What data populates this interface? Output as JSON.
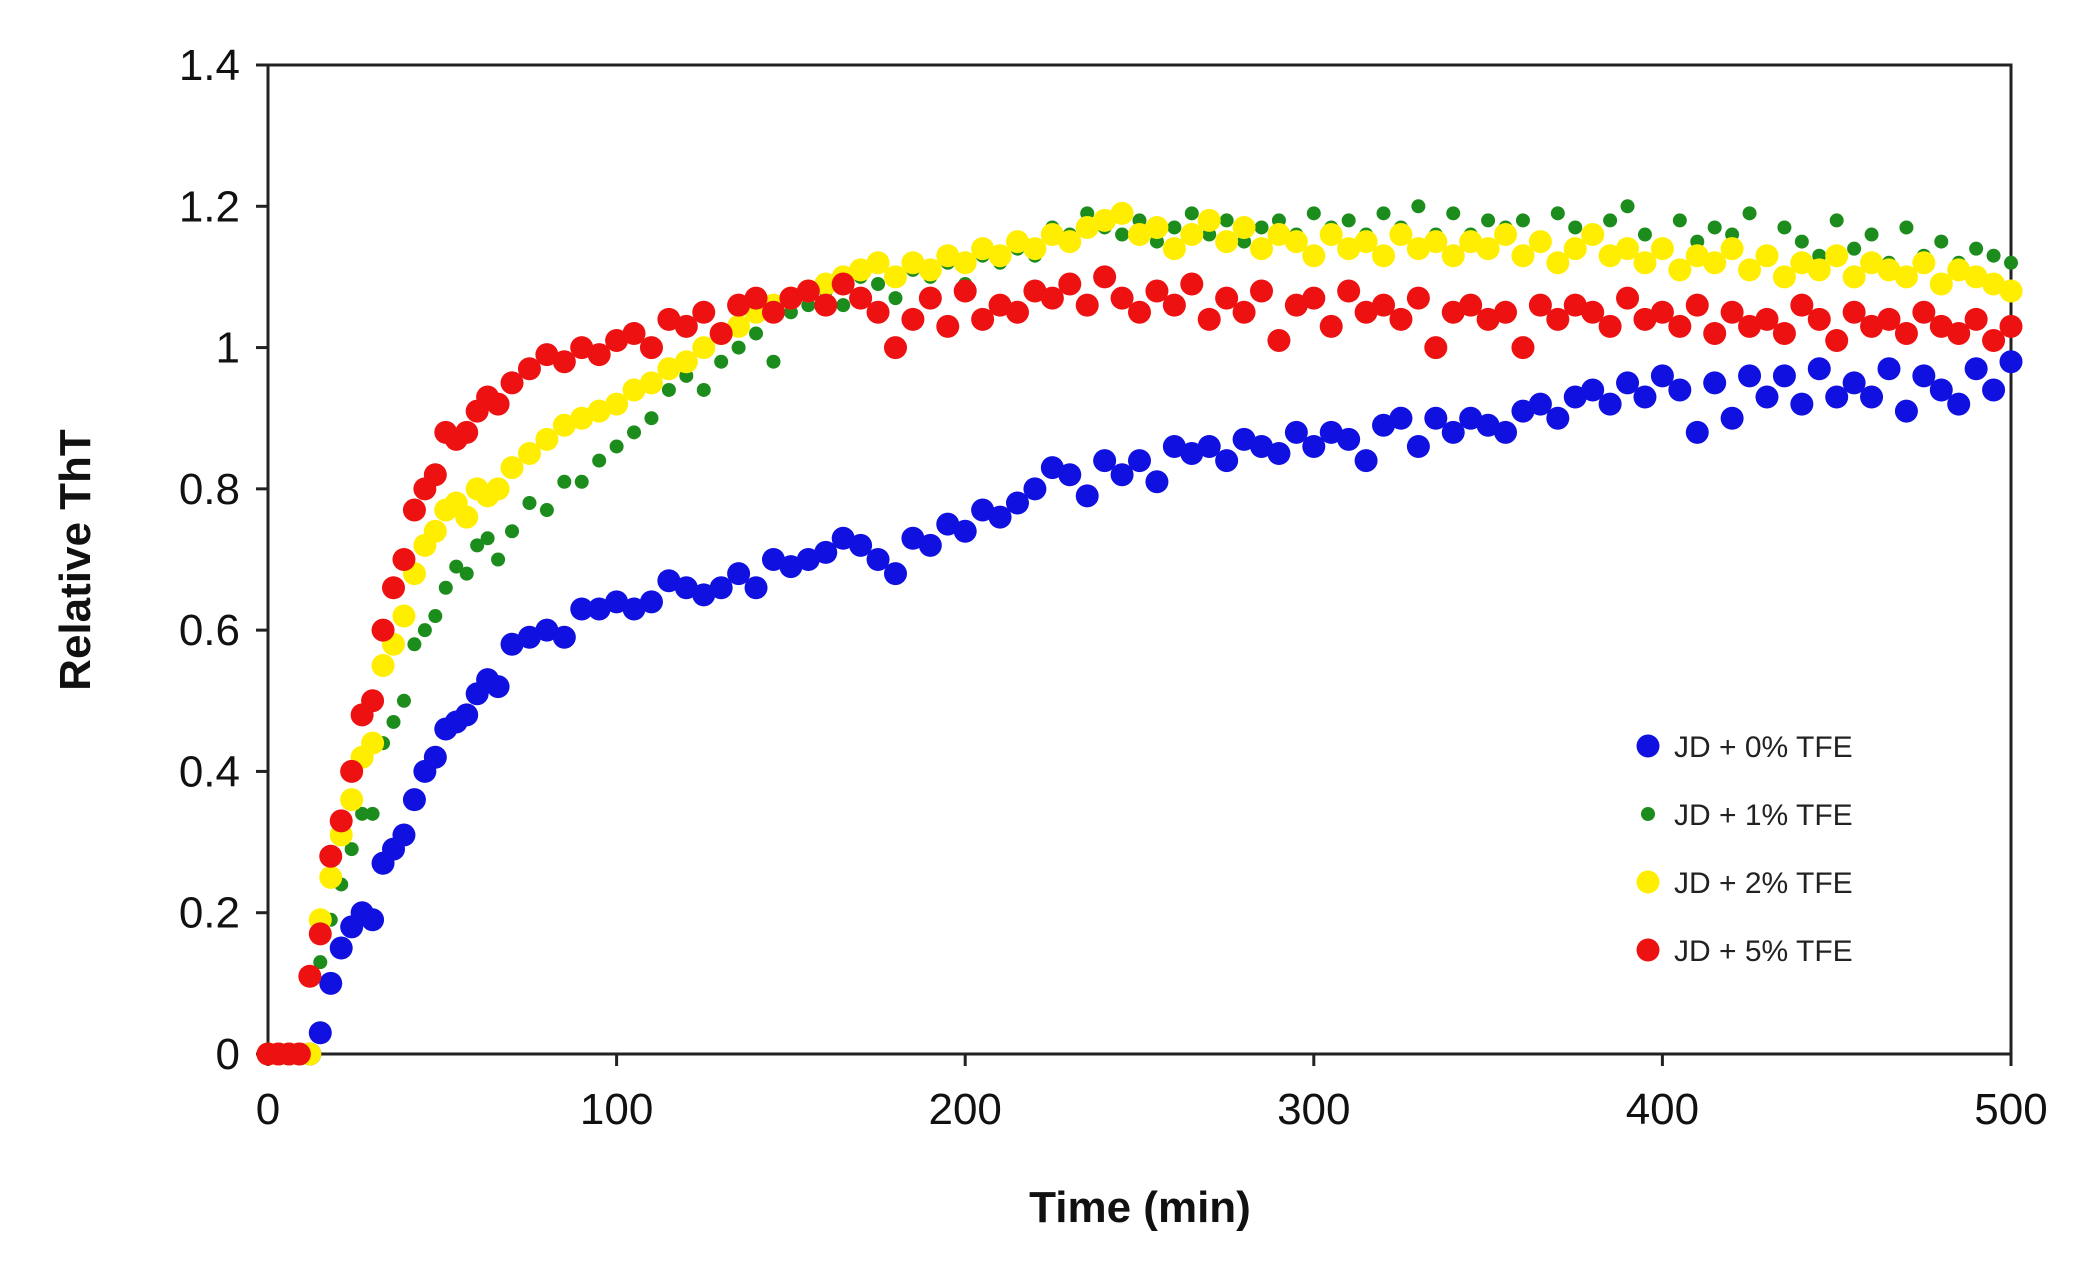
{
  "chart_data": {
    "type": "scatter",
    "title": "",
    "xlabel": "Time (min)",
    "ylabel": "Relative ThT",
    "xlim": [
      0,
      500
    ],
    "ylim": [
      0,
      1.4
    ],
    "xticks": [
      0,
      100,
      200,
      300,
      400,
      500
    ],
    "xtick_labels": [
      "0",
      "100",
      "200",
      "300",
      "400",
      "500"
    ],
    "yticks": [
      0,
      0.2,
      0.4,
      0.6,
      0.8,
      1.0,
      1.2,
      1.4
    ],
    "ytick_labels": [
      "0",
      "0.2",
      "0.4",
      "0.6",
      "0.8",
      "1",
      "1.2",
      "1.4"
    ],
    "grid": false,
    "legend_position": "lower-right",
    "series": [
      {
        "name": "JD + 0% TFE",
        "color": "#1010e0",
        "marker": "large",
        "x": [
          0,
          3,
          6,
          9,
          12,
          15,
          18,
          21,
          24,
          27,
          30,
          33,
          36,
          39,
          42,
          45,
          48,
          51,
          54,
          57,
          60,
          63,
          66,
          70,
          75,
          80,
          85,
          90,
          95,
          100,
          105,
          110,
          115,
          120,
          125,
          130,
          135,
          140,
          145,
          150,
          155,
          160,
          165,
          170,
          175,
          180,
          185,
          190,
          195,
          200,
          205,
          210,
          215,
          220,
          225,
          230,
          235,
          240,
          245,
          250,
          255,
          260,
          265,
          270,
          275,
          280,
          285,
          290,
          295,
          300,
          305,
          310,
          315,
          320,
          325,
          330,
          335,
          340,
          345,
          350,
          355,
          360,
          365,
          370,
          375,
          380,
          385,
          390,
          395,
          400,
          405,
          410,
          415,
          420,
          425,
          430,
          435,
          440,
          445,
          450,
          455,
          460,
          465,
          470,
          475,
          480,
          485,
          490,
          495,
          500
        ],
        "y": [
          0,
          0,
          0,
          0,
          0,
          0.03,
          0.1,
          0.15,
          0.18,
          0.2,
          0.19,
          0.27,
          0.29,
          0.31,
          0.36,
          0.4,
          0.42,
          0.46,
          0.47,
          0.48,
          0.51,
          0.53,
          0.52,
          0.58,
          0.59,
          0.6,
          0.59,
          0.63,
          0.63,
          0.64,
          0.63,
          0.64,
          0.67,
          0.66,
          0.65,
          0.66,
          0.68,
          0.66,
          0.7,
          0.69,
          0.7,
          0.71,
          0.73,
          0.72,
          0.7,
          0.68,
          0.73,
          0.72,
          0.75,
          0.74,
          0.77,
          0.76,
          0.78,
          0.8,
          0.83,
          0.82,
          0.79,
          0.84,
          0.82,
          0.84,
          0.81,
          0.86,
          0.85,
          0.86,
          0.84,
          0.87,
          0.86,
          0.85,
          0.88,
          0.86,
          0.88,
          0.87,
          0.84,
          0.89,
          0.9,
          0.86,
          0.9,
          0.88,
          0.9,
          0.89,
          0.88,
          0.91,
          0.92,
          0.9,
          0.93,
          0.94,
          0.92,
          0.95,
          0.93,
          0.96,
          0.94,
          0.88,
          0.95,
          0.9,
          0.96,
          0.93,
          0.96,
          0.92,
          0.97,
          0.93,
          0.95,
          0.93,
          0.97,
          0.91,
          0.96,
          0.94,
          0.92,
          0.97,
          0.94,
          0.98
        ]
      },
      {
        "name": "JD + 1% TFE",
        "color": "#1c8c1c",
        "marker": "small",
        "x": [
          0,
          3,
          6,
          9,
          12,
          15,
          18,
          21,
          24,
          27,
          30,
          33,
          36,
          39,
          42,
          45,
          48,
          51,
          54,
          57,
          60,
          63,
          66,
          70,
          75,
          80,
          85,
          90,
          95,
          100,
          105,
          110,
          115,
          120,
          125,
          130,
          135,
          140,
          145,
          150,
          155,
          160,
          165,
          170,
          175,
          180,
          185,
          190,
          195,
          200,
          205,
          210,
          215,
          220,
          225,
          230,
          235,
          240,
          245,
          250,
          255,
          260,
          265,
          270,
          275,
          280,
          285,
          290,
          295,
          300,
          305,
          310,
          315,
          320,
          325,
          330,
          335,
          340,
          345,
          350,
          355,
          360,
          365,
          370,
          375,
          380,
          385,
          390,
          395,
          400,
          405,
          410,
          415,
          420,
          425,
          430,
          435,
          440,
          445,
          450,
          455,
          460,
          465,
          470,
          475,
          480,
          485,
          490,
          495,
          500
        ],
        "y": [
          0,
          0,
          0,
          0,
          0,
          0.13,
          0.19,
          0.24,
          0.29,
          0.34,
          0.34,
          0.44,
          0.47,
          0.5,
          0.58,
          0.6,
          0.62,
          0.66,
          0.69,
          0.68,
          0.72,
          0.73,
          0.7,
          0.74,
          0.78,
          0.77,
          0.81,
          0.81,
          0.84,
          0.86,
          0.88,
          0.9,
          0.94,
          0.96,
          0.94,
          0.98,
          1.0,
          1.02,
          0.98,
          1.05,
          1.06,
          1.08,
          1.06,
          1.1,
          1.09,
          1.07,
          1.11,
          1.1,
          1.12,
          1.09,
          1.13,
          1.12,
          1.14,
          1.13,
          1.17,
          1.16,
          1.19,
          1.17,
          1.16,
          1.18,
          1.15,
          1.17,
          1.19,
          1.16,
          1.18,
          1.15,
          1.17,
          1.18,
          1.16,
          1.19,
          1.17,
          1.18,
          1.16,
          1.19,
          1.17,
          1.2,
          1.16,
          1.19,
          1.16,
          1.18,
          1.17,
          1.18,
          1.15,
          1.19,
          1.17,
          1.16,
          1.18,
          1.2,
          1.16,
          1.14,
          1.18,
          1.15,
          1.17,
          1.16,
          1.19,
          1.13,
          1.17,
          1.15,
          1.13,
          1.18,
          1.14,
          1.16,
          1.12,
          1.17,
          1.13,
          1.15,
          1.12,
          1.14,
          1.13,
          1.12
        ]
      },
      {
        "name": "JD + 2% TFE",
        "color": "#ffee00",
        "marker": "large",
        "x": [
          0,
          3,
          6,
          9,
          12,
          15,
          18,
          21,
          24,
          27,
          30,
          33,
          36,
          39,
          42,
          45,
          48,
          51,
          54,
          57,
          60,
          63,
          66,
          70,
          75,
          80,
          85,
          90,
          95,
          100,
          105,
          110,
          115,
          120,
          125,
          130,
          135,
          140,
          145,
          150,
          155,
          160,
          165,
          170,
          175,
          180,
          185,
          190,
          195,
          200,
          205,
          210,
          215,
          220,
          225,
          230,
          235,
          240,
          245,
          250,
          255,
          260,
          265,
          270,
          275,
          280,
          285,
          290,
          295,
          300,
          305,
          310,
          315,
          320,
          325,
          330,
          335,
          340,
          345,
          350,
          355,
          360,
          365,
          370,
          375,
          380,
          385,
          390,
          395,
          400,
          405,
          410,
          415,
          420,
          425,
          430,
          435,
          440,
          445,
          450,
          455,
          460,
          465,
          470,
          475,
          480,
          485,
          490,
          495,
          500
        ],
        "y": [
          0,
          0,
          0,
          0,
          0,
          0.19,
          0.25,
          0.31,
          0.36,
          0.42,
          0.44,
          0.55,
          0.58,
          0.62,
          0.68,
          0.72,
          0.74,
          0.77,
          0.78,
          0.76,
          0.8,
          0.79,
          0.8,
          0.83,
          0.85,
          0.87,
          0.89,
          0.9,
          0.91,
          0.92,
          0.94,
          0.95,
          0.97,
          0.98,
          1.0,
          1.02,
          1.03,
          1.05,
          1.06,
          1.07,
          1.08,
          1.09,
          1.1,
          1.11,
          1.12,
          1.1,
          1.12,
          1.11,
          1.13,
          1.12,
          1.14,
          1.13,
          1.15,
          1.14,
          1.16,
          1.15,
          1.17,
          1.18,
          1.19,
          1.16,
          1.17,
          1.14,
          1.16,
          1.18,
          1.15,
          1.17,
          1.14,
          1.16,
          1.15,
          1.13,
          1.16,
          1.14,
          1.15,
          1.13,
          1.16,
          1.14,
          1.15,
          1.13,
          1.15,
          1.14,
          1.16,
          1.13,
          1.15,
          1.12,
          1.14,
          1.16,
          1.13,
          1.14,
          1.12,
          1.14,
          1.11,
          1.13,
          1.12,
          1.14,
          1.11,
          1.13,
          1.1,
          1.12,
          1.11,
          1.13,
          1.1,
          1.12,
          1.11,
          1.1,
          1.12,
          1.09,
          1.11,
          1.1,
          1.09,
          1.08
        ]
      },
      {
        "name": "JD + 5% TFE",
        "color": "#ee1111",
        "marker": "large",
        "x": [
          0,
          3,
          6,
          9,
          12,
          15,
          18,
          21,
          24,
          27,
          30,
          33,
          36,
          39,
          42,
          45,
          48,
          51,
          54,
          57,
          60,
          63,
          66,
          70,
          75,
          80,
          85,
          90,
          95,
          100,
          105,
          110,
          115,
          120,
          125,
          130,
          135,
          140,
          145,
          150,
          155,
          160,
          165,
          170,
          175,
          180,
          185,
          190,
          195,
          200,
          205,
          210,
          215,
          220,
          225,
          230,
          235,
          240,
          245,
          250,
          255,
          260,
          265,
          270,
          275,
          280,
          285,
          290,
          295,
          300,
          305,
          310,
          315,
          320,
          325,
          330,
          335,
          340,
          345,
          350,
          355,
          360,
          365,
          370,
          375,
          380,
          385,
          390,
          395,
          400,
          405,
          410,
          415,
          420,
          425,
          430,
          435,
          440,
          445,
          450,
          455,
          460,
          465,
          470,
          475,
          480,
          485,
          490,
          495,
          500
        ],
        "y": [
          0,
          0,
          0,
          0,
          0.11,
          0.17,
          0.28,
          0.33,
          0.4,
          0.48,
          0.5,
          0.6,
          0.66,
          0.7,
          0.77,
          0.8,
          0.82,
          0.88,
          0.87,
          0.88,
          0.91,
          0.93,
          0.92,
          0.95,
          0.97,
          0.99,
          0.98,
          1.0,
          0.99,
          1.01,
          1.02,
          1.0,
          1.04,
          1.03,
          1.05,
          1.02,
          1.06,
          1.07,
          1.05,
          1.07,
          1.08,
          1.06,
          1.09,
          1.07,
          1.05,
          1.0,
          1.04,
          1.07,
          1.03,
          1.08,
          1.04,
          1.06,
          1.05,
          1.08,
          1.07,
          1.09,
          1.06,
          1.1,
          1.07,
          1.05,
          1.08,
          1.06,
          1.09,
          1.04,
          1.07,
          1.05,
          1.08,
          1.01,
          1.06,
          1.07,
          1.03,
          1.08,
          1.05,
          1.06,
          1.04,
          1.07,
          1.0,
          1.05,
          1.06,
          1.04,
          1.05,
          1.0,
          1.06,
          1.04,
          1.06,
          1.05,
          1.03,
          1.07,
          1.04,
          1.05,
          1.03,
          1.06,
          1.02,
          1.05,
          1.03,
          1.04,
          1.02,
          1.06,
          1.04,
          1.01,
          1.05,
          1.03,
          1.04,
          1.02,
          1.05,
          1.03,
          1.02,
          1.04,
          1.01,
          1.03
        ]
      }
    ]
  }
}
